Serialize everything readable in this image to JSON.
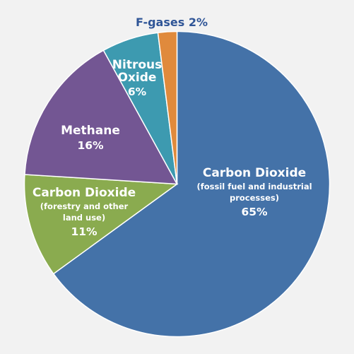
{
  "chart_data": {
    "type": "pie",
    "start_angle_deg": 0,
    "direction": "clockwise",
    "slices": [
      {
        "key": "co2-fossil",
        "name": "Carbon Dioxide",
        "sub": [
          "(fossil fuel and industrial",
          "processes)"
        ],
        "value": 65,
        "label": "65%",
        "color": "#4472a8"
      },
      {
        "key": "co2-forestry",
        "name": "Carbon Dioxide",
        "sub": [
          "(forestry and other",
          "land use)"
        ],
        "value": 11,
        "label": "11%",
        "color": "#8aab4f"
      },
      {
        "key": "methane",
        "name": "Methane",
        "sub": [],
        "value": 16,
        "label": "16%",
        "color": "#735693"
      },
      {
        "key": "nitrous-oxide",
        "name": "Nitrous",
        "name2": "Oxide",
        "sub": [],
        "value": 6,
        "label": "6%",
        "color": "#3d9ab0"
      },
      {
        "key": "f-gases",
        "name": "F-gases",
        "sub": [],
        "value": 2,
        "label": "F-gases 2%",
        "color": "#e08a3c"
      }
    ]
  }
}
